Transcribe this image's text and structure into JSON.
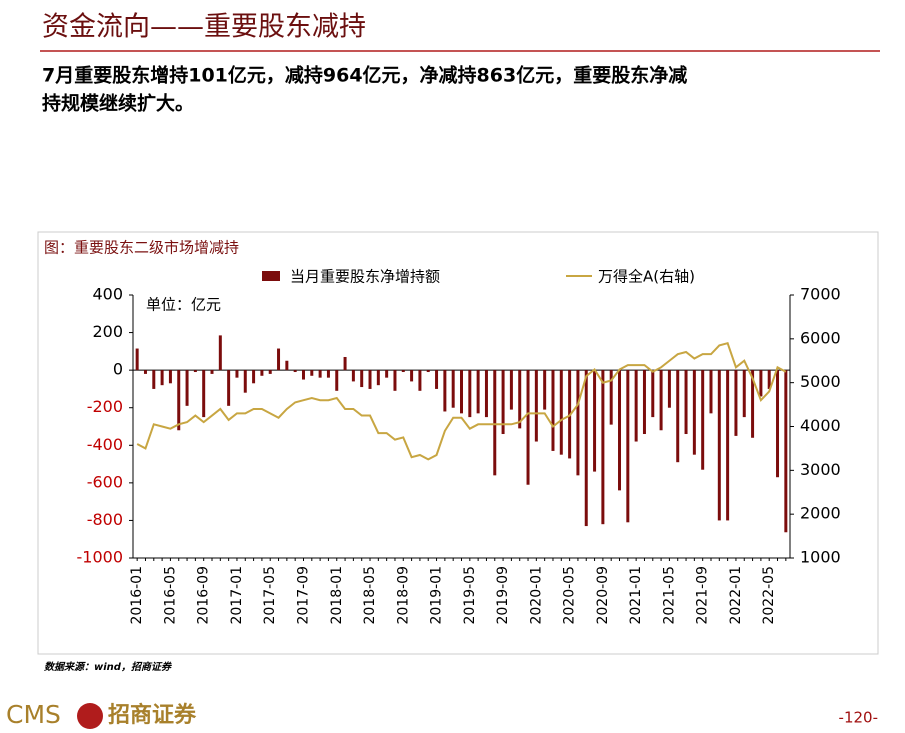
{
  "header": {
    "title": "资金流向——重要股东减持",
    "summary": [
      "7月重要股东增持101亿元，减持964亿元，净减持863亿元，重要股东净减",
      "持规模继续扩大。"
    ]
  },
  "chart_data": {
    "type": "bar",
    "caption": "图：重要股东二级市场增减持",
    "unit": "单位：亿元",
    "source": "数据来源：wind，招商证券",
    "categories": [
      "2016-01",
      null,
      null,
      null,
      "2016-05",
      null,
      null,
      null,
      "2016-09",
      null,
      null,
      null,
      "2017-01",
      null,
      null,
      null,
      "2017-05",
      null,
      null,
      null,
      "2017-09",
      null,
      null,
      null,
      "2018-01",
      null,
      null,
      null,
      "2018-05",
      null,
      null,
      null,
      "2018-09",
      null,
      null,
      null,
      "2019-01",
      null,
      null,
      null,
      "2019-05",
      null,
      null,
      null,
      "2019-09",
      null,
      null,
      null,
      "2020-01",
      null,
      null,
      null,
      "2020-05",
      null,
      null,
      null,
      "2020-09",
      null,
      null,
      null,
      "2021-01",
      null,
      null,
      null,
      "2021-05",
      null,
      null,
      null,
      "2021-09",
      null,
      null,
      null,
      "2022-01",
      null,
      null,
      null,
      "2022-05",
      null,
      null
    ],
    "series": [
      {
        "name": "当月重要股东净增持额",
        "type": "bar",
        "color": "#7b0c0c",
        "values": [
          115,
          -20,
          -100,
          -80,
          -70,
          -320,
          -190,
          -10,
          -250,
          -20,
          185,
          -190,
          -40,
          -120,
          -70,
          -30,
          -20,
          115,
          50,
          -10,
          -50,
          -30,
          -40,
          -40,
          -110,
          70,
          -60,
          -90,
          -100,
          -80,
          -40,
          -110,
          -10,
          -60,
          -110,
          -10,
          -100,
          -220,
          -200,
          -230,
          -250,
          -230,
          -250,
          -560,
          -340,
          -210,
          -310,
          -610,
          -380,
          -210,
          -430,
          -450,
          -470,
          -560,
          -830,
          -540,
          -820,
          -290,
          -640,
          -810,
          -380,
          -340,
          -250,
          -320,
          -200,
          -490,
          -340,
          -450,
          -530,
          -230,
          -800,
          -800,
          -350,
          -250,
          -360,
          -140,
          -100,
          -570,
          -863
        ]
      },
      {
        "name": "万得全A(右轴)",
        "type": "line",
        "axis": "y2",
        "color": "#c8a642",
        "values": [
          3600,
          3500,
          4050,
          4000,
          3950,
          4050,
          4100,
          4250,
          4100,
          4250,
          4400,
          4150,
          4300,
          4300,
          4400,
          4400,
          4300,
          4200,
          4400,
          4550,
          4600,
          4650,
          4600,
          4600,
          4650,
          4400,
          4400,
          4250,
          4250,
          3850,
          3850,
          3700,
          3750,
          3300,
          3350,
          3250,
          3350,
          3900,
          4200,
          4200,
          3950,
          4050,
          4050,
          4050,
          4050,
          4050,
          4100,
          4300,
          4300,
          4300,
          4000,
          4150,
          4250,
          4500,
          5150,
          5300,
          5000,
          5050,
          5300,
          5400,
          5400,
          5400,
          5250,
          5350,
          5500,
          5650,
          5700,
          5550,
          5650,
          5650,
          5850,
          5900,
          5350,
          5500,
          5100,
          4600,
          4800,
          5350,
          5250
        ]
      }
    ],
    "ylim": [
      -1000,
      400
    ],
    "yticks": [
      -1000,
      -800,
      -600,
      -400,
      -200,
      0,
      200,
      400
    ],
    "y2lim": [
      1000,
      7000
    ],
    "y2ticks": [
      1000,
      2000,
      3000,
      4000,
      5000,
      6000,
      7000
    ]
  },
  "footer": {
    "logo": "CMS",
    "brand": "招商证券",
    "page": "-120-"
  }
}
